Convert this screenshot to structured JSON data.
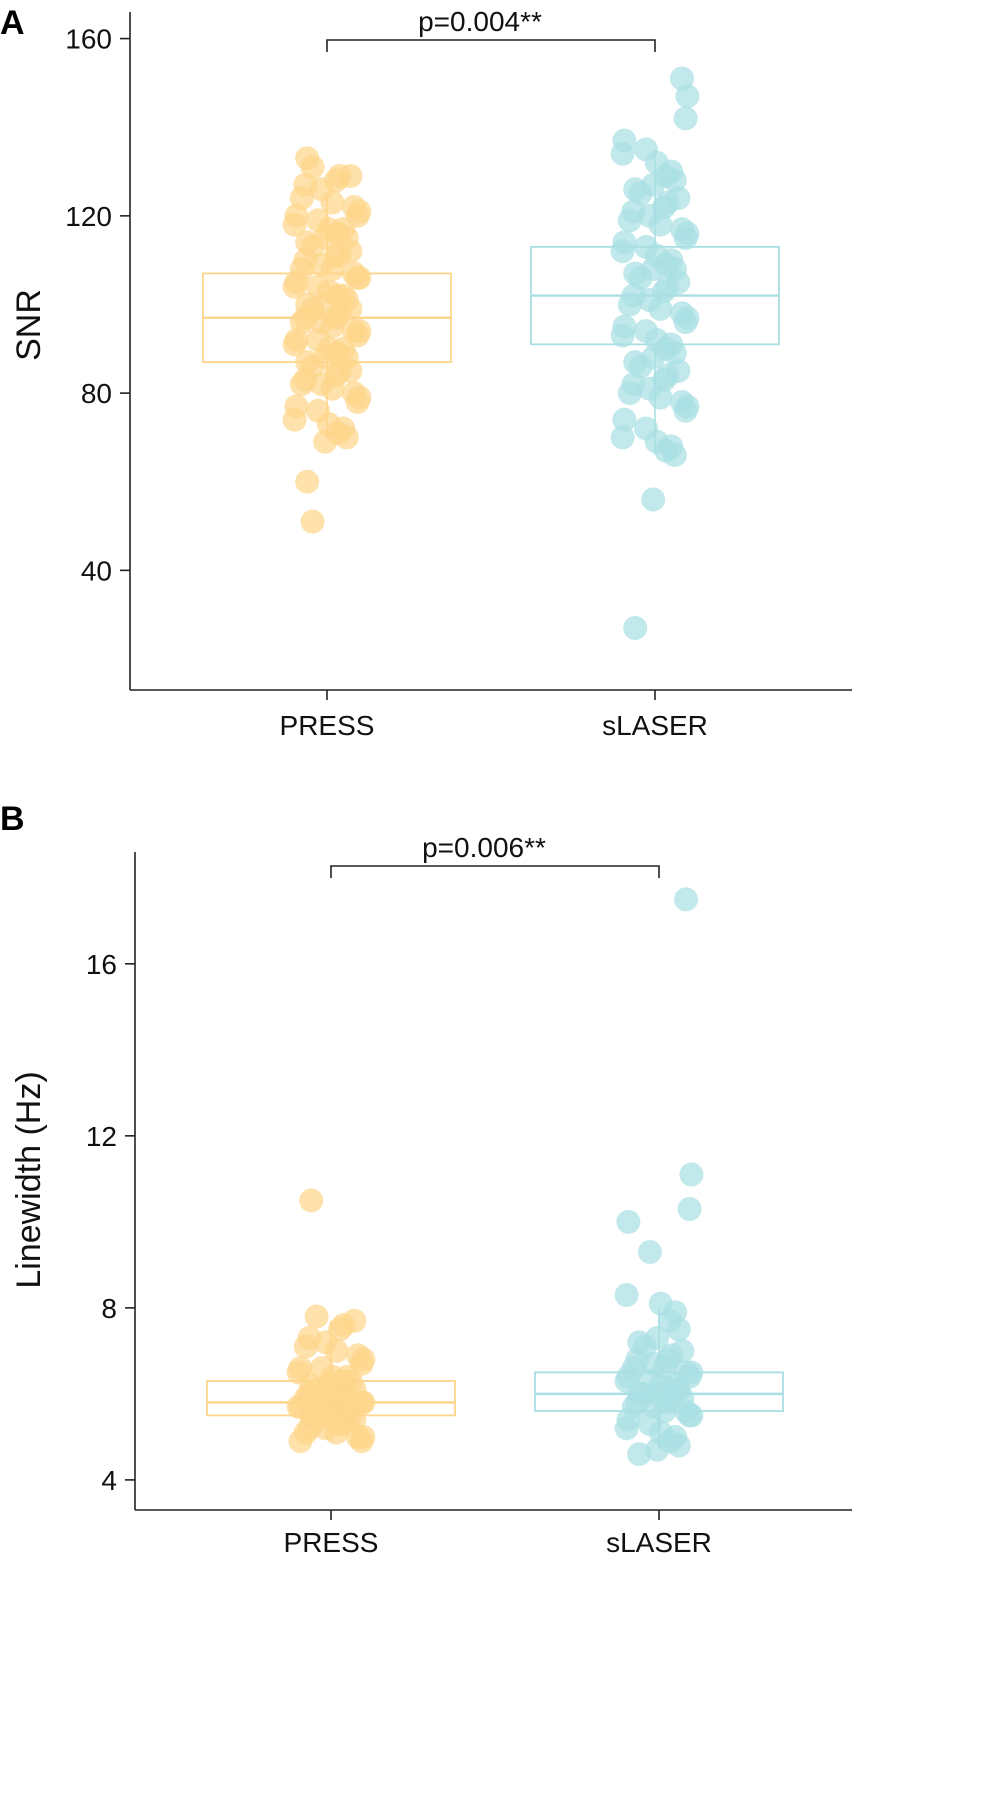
{
  "chart_data": [
    {
      "panel_label": "A",
      "type": "scatter",
      "categories": [
        "PRESS",
        "sLASER"
      ],
      "ylabel": "SNR",
      "ylim": [
        13,
        166
      ],
      "yticks": [
        40,
        80,
        120,
        160
      ],
      "annotation": "p=0.004**",
      "colors": {
        "PRESS": "#fdd58a",
        "sLASER": "#a9dfe3"
      },
      "box": [
        {
          "category": "PRESS",
          "q1": 87,
          "median": 97,
          "q3": 107,
          "min": 70,
          "max": 124
        },
        {
          "category": "sLASER",
          "q1": 91,
          "median": 102,
          "q3": 113,
          "min": 67,
          "max": 135
        }
      ],
      "series": [
        {
          "category": "PRESS",
          "values": [
            133,
            131,
            129,
            129,
            128,
            127,
            126,
            124,
            123,
            122,
            121,
            120,
            120,
            119,
            118,
            117,
            117,
            116,
            115,
            115,
            114,
            113,
            112,
            111,
            111,
            110,
            109,
            108,
            108,
            107,
            106,
            106,
            105,
            104,
            104,
            103,
            102,
            102,
            101,
            100,
            100,
            99,
            99,
            98,
            97,
            97,
            96,
            96,
            95,
            94,
            94,
            93,
            92,
            92,
            91,
            90,
            90,
            89,
            88,
            88,
            87,
            86,
            85,
            85,
            84,
            83,
            82,
            82,
            81,
            80,
            79,
            78,
            77,
            76,
            74,
            73,
            72,
            71,
            70,
            69,
            60,
            51
          ]
        },
        {
          "category": "sLASER",
          "values": [
            151,
            147,
            142,
            137,
            135,
            134,
            132,
            130,
            129,
            128,
            127,
            126,
            125,
            124,
            123,
            122,
            121,
            120,
            119,
            118,
            117,
            116,
            115,
            114,
            113,
            112,
            111,
            110,
            109,
            108,
            108,
            107,
            106,
            105,
            104,
            103,
            102,
            101,
            100,
            99,
            98,
            97,
            96,
            95,
            94,
            93,
            92,
            91,
            90,
            89,
            88,
            87,
            86,
            85,
            84,
            83,
            82,
            81,
            80,
            79,
            78,
            77,
            76,
            74,
            72,
            70,
            69,
            68,
            67,
            66,
            56,
            27
          ]
        }
      ]
    },
    {
      "panel_label": "B",
      "type": "scatter",
      "categories": [
        "PRESS",
        "sLASER"
      ],
      "ylabel": "Linewidth (Hz)",
      "ylim": [
        3.3,
        18.6
      ],
      "yticks": [
        4,
        8,
        12,
        16
      ],
      "annotation": "p=0.006**",
      "colors": {
        "PRESS": "#fdd58a",
        "sLASER": "#a9dfe3"
      },
      "box": [
        {
          "category": "PRESS",
          "q1": 5.5,
          "median": 5.8,
          "q3": 6.3,
          "min": 4.9,
          "max": 7.7
        },
        {
          "category": "sLASER",
          "q1": 5.6,
          "median": 6.0,
          "q3": 6.5,
          "min": 4.7,
          "max": 8.0
        }
      ],
      "series": [
        {
          "category": "PRESS",
          "values": [
            10.5,
            7.8,
            7.7,
            7.6,
            7.5,
            7.3,
            7.2,
            7.1,
            7.0,
            6.9,
            6.8,
            6.7,
            6.6,
            6.6,
            6.5,
            6.4,
            6.4,
            6.3,
            6.3,
            6.2,
            6.2,
            6.1,
            6.1,
            6.0,
            6.0,
            6.0,
            5.9,
            5.9,
            5.9,
            5.8,
            5.8,
            5.8,
            5.7,
            5.7,
            5.7,
            5.6,
            5.6,
            5.6,
            5.5,
            5.5,
            5.5,
            5.4,
            5.4,
            5.3,
            5.3,
            5.2,
            5.2,
            5.1,
            5.1,
            5.0,
            5.0,
            4.9,
            4.9
          ]
        },
        {
          "category": "sLASER",
          "values": [
            17.5,
            11.1,
            10.3,
            10.0,
            9.3,
            8.3,
            8.1,
            7.9,
            7.7,
            7.5,
            7.3,
            7.2,
            7.1,
            7.0,
            6.9,
            6.8,
            6.8,
            6.7,
            6.6,
            6.6,
            6.5,
            6.5,
            6.4,
            6.4,
            6.3,
            6.3,
            6.2,
            6.2,
            6.1,
            6.1,
            6.0,
            6.0,
            6.0,
            5.9,
            5.9,
            5.8,
            5.8,
            5.7,
            5.7,
            5.6,
            5.6,
            5.5,
            5.5,
            5.4,
            5.3,
            5.2,
            5.1,
            5.0,
            4.9,
            4.8,
            4.7,
            4.6
          ]
        }
      ]
    }
  ]
}
